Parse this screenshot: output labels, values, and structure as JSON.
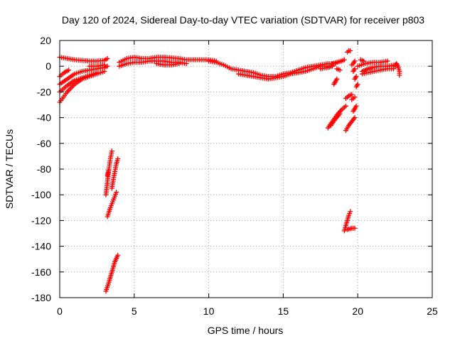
{
  "chart_data": {
    "type": "scatter",
    "title": "Day 120 of 2024, Sidereal Day-to-day VTEC variation (SDTVAR) for receiver p803",
    "xlabel": "GPS time / hours",
    "ylabel": "SDTVAR / TECUs",
    "xlim": [
      0,
      25
    ],
    "ylim": [
      -180,
      20
    ],
    "xticks": [
      0,
      5,
      10,
      15,
      20,
      25
    ],
    "yticks": [
      20,
      0,
      -20,
      -40,
      -60,
      -80,
      -100,
      -120,
      -140,
      -160,
      -180
    ],
    "grid": true,
    "marker": "+",
    "color": "#ff0000",
    "series": [
      {
        "name": "SDTVAR",
        "segments": [
          [
            [
              0.0,
              7
            ],
            [
              0.5,
              6
            ],
            [
              1.0,
              5
            ],
            [
              1.5,
              4.5
            ],
            [
              2.0,
              4
            ],
            [
              2.5,
              4
            ],
            [
              3.0,
              4.5
            ],
            [
              3.2,
              6
            ]
          ],
          [
            [
              0.0,
              -8
            ],
            [
              0.3,
              -5
            ],
            [
              0.6,
              -3
            ]
          ],
          [
            [
              0.0,
              -14
            ],
            [
              0.5,
              -10
            ],
            [
              1.0,
              -6
            ],
            [
              1.5,
              -4
            ],
            [
              2.0,
              -3
            ],
            [
              2.5,
              -2
            ],
            [
              3.0,
              -1
            ],
            [
              3.2,
              0
            ]
          ],
          [
            [
              0.0,
              -20
            ],
            [
              0.5,
              -15
            ],
            [
              1.0,
              -11
            ],
            [
              1.5,
              -9
            ],
            [
              2.0,
              -7
            ],
            [
              2.5,
              -5
            ]
          ],
          [
            [
              0.0,
              -28
            ],
            [
              0.5,
              -20
            ],
            [
              1.0,
              -14
            ],
            [
              1.5,
              -10
            ],
            [
              2.0,
              -8
            ],
            [
              2.5,
              -6
            ],
            [
              3.0,
              -4
            ]
          ],
          [
            [
              2.0,
              0
            ],
            [
              2.5,
              0
            ],
            [
              3.0,
              1
            ]
          ],
          [
            [
              3.1,
              -100
            ],
            [
              3.2,
              -90
            ],
            [
              3.3,
              -80
            ],
            [
              3.4,
              -72
            ],
            [
              3.5,
              -66
            ]
          ],
          [
            [
              3.2,
              -85
            ],
            [
              3.3,
              -80
            ]
          ],
          [
            [
              3.2,
              -117
            ],
            [
              3.4,
              -110
            ],
            [
              3.6,
              -104
            ],
            [
              3.8,
              -98
            ]
          ],
          [
            [
              3.5,
              -95
            ],
            [
              3.6,
              -88
            ],
            [
              3.7,
              -82
            ],
            [
              3.8,
              -76
            ],
            [
              3.9,
              -72
            ]
          ],
          [
            [
              3.1,
              -175
            ],
            [
              3.3,
              -168
            ],
            [
              3.5,
              -160
            ],
            [
              3.7,
              -152
            ],
            [
              3.9,
              -147
            ]
          ],
          [
            [
              4.0,
              3
            ],
            [
              4.5,
              6
            ],
            [
              5.0,
              7
            ],
            [
              5.5,
              6
            ],
            [
              6.0,
              6
            ],
            [
              6.5,
              7
            ],
            [
              7.0,
              7
            ],
            [
              7.5,
              6.5
            ],
            [
              8.0,
              6
            ],
            [
              8.5,
              5
            ],
            [
              9.0,
              5
            ],
            [
              9.5,
              5
            ],
            [
              10.0,
              5
            ],
            [
              10.5,
              4
            ]
          ],
          [
            [
              4.0,
              0
            ],
            [
              4.5,
              2
            ],
            [
              5.0,
              3
            ],
            [
              5.5,
              3
            ],
            [
              6.0,
              4
            ],
            [
              6.5,
              4
            ],
            [
              7.0,
              4
            ],
            [
              7.5,
              3
            ],
            [
              8.0,
              3
            ],
            [
              8.5,
              2
            ]
          ],
          [
            [
              6.5,
              2
            ],
            [
              7.0,
              1
            ],
            [
              7.5,
              1
            ],
            [
              8.0,
              2
            ]
          ],
          [
            [
              10.0,
              4
            ],
            [
              10.5,
              3
            ],
            [
              11.0,
              1
            ],
            [
              11.5,
              -2
            ],
            [
              12.0,
              -3
            ],
            [
              12.5,
              -4
            ],
            [
              13.0,
              -5
            ],
            [
              13.5,
              -7
            ],
            [
              14.0,
              -8
            ],
            [
              14.5,
              -8
            ],
            [
              15.0,
              -6
            ],
            [
              15.5,
              -5
            ],
            [
              16.0,
              -3
            ],
            [
              16.5,
              -1
            ],
            [
              17.0,
              0
            ],
            [
              17.5,
              1
            ],
            [
              18.0,
              2
            ],
            [
              18.5,
              2
            ]
          ],
          [
            [
              12.0,
              -6
            ],
            [
              12.5,
              -7
            ],
            [
              13.0,
              -8
            ],
            [
              13.5,
              -9
            ],
            [
              14.0,
              -10
            ],
            [
              14.5,
              -9
            ],
            [
              15.0,
              -8
            ],
            [
              15.5,
              -6
            ],
            [
              16.0,
              -5
            ],
            [
              16.5,
              -4
            ],
            [
              17.0,
              -2
            ],
            [
              17.5,
              0
            ],
            [
              18.0,
              0
            ]
          ],
          [
            [
              17.5,
              -2
            ],
            [
              18.0,
              -1
            ],
            [
              18.3,
              0
            ]
          ],
          [
            [
              18.3,
              2
            ],
            [
              18.6,
              3
            ],
            [
              18.9,
              4
            ],
            [
              19.1,
              5
            ]
          ],
          [
            [
              18.6,
              -2
            ],
            [
              18.8,
              -3
            ]
          ],
          [
            [
              18.4,
              -14
            ],
            [
              18.5,
              -12
            ],
            [
              18.6,
              -10
            ]
          ],
          [
            [
              18.0,
              -48
            ],
            [
              18.3,
              -43
            ],
            [
              18.6,
              -38
            ],
            [
              18.9,
              -34
            ],
            [
              19.2,
              -31
            ]
          ],
          [
            [
              18.2,
              -46
            ],
            [
              18.5,
              -41
            ],
            [
              18.8,
              -37
            ]
          ],
          [
            [
              19.3,
              11
            ],
            [
              19.4,
              12
            ],
            [
              19.5,
              12
            ]
          ],
          [
            [
              19.6,
              1
            ],
            [
              19.7,
              2
            ],
            [
              19.8,
              4
            ]
          ],
          [
            [
              19.7,
              -4
            ],
            [
              19.8,
              -2
            ]
          ],
          [
            [
              19.9,
              -16
            ],
            [
              20.0,
              -14
            ]
          ],
          [
            [
              19.8,
              -10
            ],
            [
              19.9,
              -8
            ]
          ],
          [
            [
              19.2,
              -25
            ],
            [
              19.4,
              -23
            ],
            [
              19.6,
              -22
            ]
          ],
          [
            [
              19.6,
              -26
            ],
            [
              19.8,
              -24
            ]
          ],
          [
            [
              19.2,
              -50
            ],
            [
              19.4,
              -46
            ],
            [
              19.6,
              -43
            ],
            [
              19.8,
              -40
            ]
          ],
          [
            [
              19.7,
              -35
            ],
            [
              19.8,
              -33
            ],
            [
              19.9,
              -31
            ]
          ],
          [
            [
              19.1,
              -128
            ],
            [
              19.2,
              -124
            ],
            [
              19.3,
              -120
            ],
            [
              19.4,
              -116
            ],
            [
              19.5,
              -113
            ]
          ],
          [
            [
              19.3,
              -127
            ],
            [
              19.6,
              -126
            ],
            [
              19.8,
              -126
            ]
          ],
          [
            [
              20.0,
              0
            ],
            [
              20.5,
              2
            ],
            [
              21.0,
              3
            ],
            [
              21.5,
              3
            ],
            [
              22.0,
              4
            ]
          ],
          [
            [
              20.3,
              -4
            ],
            [
              20.7,
              -2
            ],
            [
              21.0,
              -1
            ],
            [
              21.5,
              0
            ],
            [
              22.0,
              0
            ],
            [
              22.5,
              1
            ]
          ],
          [
            [
              20.3,
              -6
            ],
            [
              20.7,
              -5
            ],
            [
              21.1,
              -4
            ],
            [
              21.5,
              -3
            ],
            [
              22.0,
              -2
            ],
            [
              22.4,
              -2
            ]
          ],
          [
            [
              20.2,
              5
            ],
            [
              20.4,
              4
            ]
          ],
          [
            [
              22.5,
              0
            ],
            [
              22.6,
              2
            ],
            [
              22.7,
              0
            ],
            [
              22.8,
              -4
            ],
            [
              22.8,
              -7
            ]
          ]
        ]
      }
    ]
  }
}
